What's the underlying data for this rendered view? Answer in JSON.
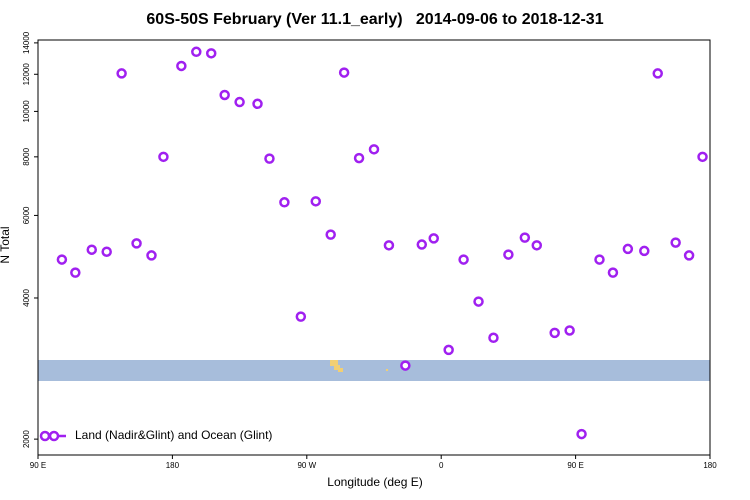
{
  "chart_data": {
    "type": "scatter",
    "title": "60S-50S February (Ver 11.1_early)   2014-09-06 to 2018-12-31",
    "x_label": "Longitude (deg E)",
    "y_label": "N Total",
    "xlim": [
      90,
      540
    ],
    "xticks": [
      {
        "value": 90,
        "label": "90 E"
      },
      {
        "value": 180,
        "label": "180"
      },
      {
        "value": 270,
        "label": "90 W"
      },
      {
        "value": 360,
        "label": "0"
      },
      {
        "value": 450,
        "label": "90 E"
      },
      {
        "value": 540,
        "label": "180"
      }
    ],
    "ylim": [
      1850,
      14200
    ],
    "y_log": true,
    "yticks": [
      2000,
      4000,
      6000,
      8000,
      10000,
      12000,
      14000
    ],
    "legend": "bottom left",
    "series": [
      {
        "name": "Land (Nadir&Glint) and Ocean (Glint)",
        "color": "#a020f0",
        "x": [
          106,
          115,
          126,
          136,
          146,
          156,
          166,
          174,
          186,
          196,
          206,
          215,
          225,
          237,
          245,
          255,
          266,
          276,
          286,
          295,
          305,
          315,
          325,
          336,
          347,
          355,
          365,
          375,
          385,
          395,
          405,
          416,
          424,
          436,
          446,
          454,
          466,
          475,
          485,
          496,
          505,
          517,
          526,
          535
        ],
        "values": [
          4830,
          4530,
          5070,
          5020,
          12050,
          5230,
          4930,
          8000,
          12500,
          13400,
          13300,
          10840,
          10470,
          10380,
          7930,
          6400,
          3650,
          6430,
          5460,
          12100,
          7950,
          8300,
          5180,
          2870,
          5200,
          5360,
          3100,
          4830,
          3930,
          3290,
          4950,
          5380,
          5180,
          3370,
          3410,
          2050,
          4830,
          4530,
          5090,
          5040,
          12050,
          5250,
          4930,
          8000
        ]
      }
    ]
  }
}
